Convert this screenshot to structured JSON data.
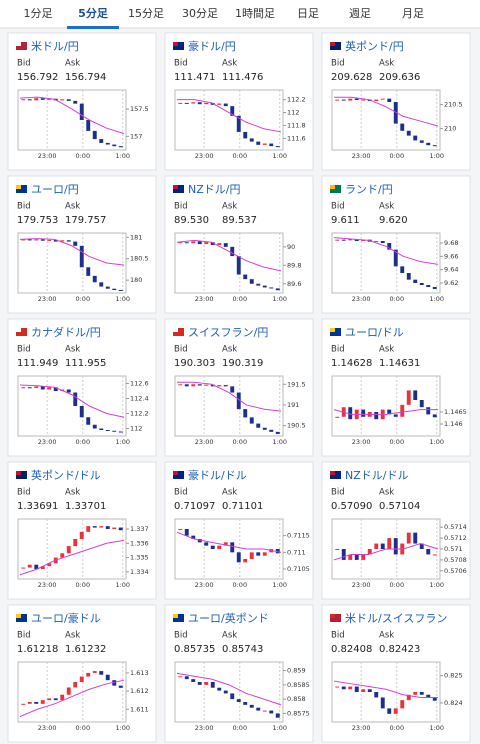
{
  "tabs": [
    "1分足",
    "5分足",
    "15分足",
    "30分足",
    "1時間足",
    "日足",
    "週足",
    "月足"
  ],
  "bid_label": "Bid",
  "ask_label": "Ask",
  "xticks": [
    "23:00",
    "0:00",
    "1:00"
  ],
  "cards": [
    {
      "pair": "米ドル/円",
      "bid": "156.792",
      "ask": "156.794",
      "ylim": [
        156.75,
        157.85
      ],
      "yticks": [
        157.5,
        157
      ],
      "closes": [
        157.68,
        157.66,
        157.7,
        157.67,
        157.69,
        157.66,
        157.68,
        157.65,
        157.6,
        157.3,
        157.1,
        156.95,
        156.88,
        156.85,
        156.82,
        156.8
      ],
      "ma": [
        157.7,
        157.72,
        157.68,
        157.5,
        157.3,
        157.15,
        157.05
      ]
    },
    {
      "pair": "豪ドル/円",
      "bid": "111.471",
      "ask": "111.476",
      "ylim": [
        111.42,
        112.35
      ],
      "yticks": [
        112.2,
        112,
        111.8,
        111.6
      ],
      "closes": [
        112.15,
        112.14,
        112.16,
        112.13,
        112.15,
        112.12,
        112.14,
        112.1,
        111.95,
        111.7,
        111.6,
        111.55,
        111.5,
        111.52,
        111.48,
        111.47
      ],
      "ma": [
        112.2,
        112.2,
        112.15,
        112.0,
        111.85,
        111.75,
        111.7
      ]
    },
    {
      "pair": "英ポンド/円",
      "bid": "209.628",
      "ask": "209.636",
      "ylim": [
        209.55,
        210.8
      ],
      "yticks": [
        210.5,
        210
      ],
      "closes": [
        210.6,
        210.58,
        210.62,
        210.59,
        210.6,
        210.57,
        210.6,
        210.62,
        210.55,
        210.1,
        209.95,
        209.85,
        209.75,
        209.7,
        209.65,
        209.63
      ],
      "ma": [
        210.65,
        210.65,
        210.6,
        210.45,
        210.25,
        210.15,
        210.05
      ]
    },
    {
      "pair": "ユーロ/円",
      "bid": "179.753",
      "ask": "179.757",
      "ylim": [
        179.7,
        181.1
      ],
      "yticks": [
        181,
        180.5,
        180
      ],
      "closes": [
        180.95,
        180.93,
        180.95,
        180.92,
        180.94,
        180.9,
        180.93,
        180.9,
        180.8,
        180.3,
        180.1,
        179.95,
        179.85,
        179.8,
        179.77,
        179.75
      ],
      "ma": [
        180.95,
        180.97,
        180.95,
        180.8,
        180.55,
        180.4,
        180.35
      ]
    },
    {
      "pair": "NZドル/円",
      "bid": "89.530",
      "ask": "89.537",
      "ylim": [
        89.5,
        90.15
      ],
      "yticks": [
        90,
        89.8,
        89.6
      ],
      "closes": [
        90.05,
        90.04,
        90.06,
        90.03,
        90.05,
        90.02,
        90.04,
        90.0,
        89.9,
        89.7,
        89.65,
        89.6,
        89.58,
        89.56,
        89.55,
        89.53
      ],
      "ma": [
        90.05,
        90.07,
        90.05,
        89.95,
        89.85,
        89.78,
        89.74
      ]
    },
    {
      "pair": "ランド/円",
      "bid": "9.611",
      "ask": "9.620",
      "ylim": [
        9.605,
        9.695
      ],
      "yticks": [
        9.68,
        9.66,
        9.64,
        9.62
      ],
      "closes": [
        9.685,
        9.684,
        9.686,
        9.683,
        9.685,
        9.682,
        9.683,
        9.68,
        9.67,
        9.645,
        9.635,
        9.625,
        9.62,
        9.617,
        9.614,
        9.611
      ],
      "ma": [
        9.688,
        9.686,
        9.684,
        9.675,
        9.66,
        9.652,
        9.648
      ]
    },
    {
      "pair": "カナダドル/円",
      "bid": "111.949",
      "ask": "111.955",
      "ylim": [
        111.9,
        112.7
      ],
      "yticks": [
        112.6,
        112.4,
        112.2,
        112
      ],
      "closes": [
        112.55,
        112.54,
        112.56,
        112.52,
        112.55,
        112.5,
        112.52,
        112.48,
        112.3,
        112.15,
        112.05,
        112.0,
        111.98,
        111.97,
        111.96,
        111.95
      ],
      "ma": [
        112.58,
        112.57,
        112.55,
        112.45,
        112.3,
        112.2,
        112.15
      ]
    },
    {
      "pair": "スイスフラン/円",
      "bid": "190.303",
      "ask": "190.319",
      "ylim": [
        190.25,
        191.7
      ],
      "yticks": [
        191.5,
        191,
        190.5
      ],
      "closes": [
        191.5,
        191.45,
        191.5,
        191.47,
        191.49,
        191.45,
        191.48,
        191.45,
        191.3,
        190.9,
        190.7,
        190.55,
        190.45,
        190.4,
        190.35,
        190.3
      ],
      "ma": [
        191.55,
        191.55,
        191.5,
        191.3,
        191.0,
        190.9,
        190.85
      ]
    },
    {
      "pair": "ユーロ/ドル",
      "bid": "1.14628",
      "ask": "1.14631",
      "ylim": [
        1.1455,
        1.148
      ],
      "yticks": [
        1.1465,
        1.146
      ],
      "closes": [
        1.1463,
        1.1467,
        1.1462,
        1.1466,
        1.1463,
        1.1465,
        1.1462,
        1.1466,
        1.1464,
        1.1463,
        1.1468,
        1.1474,
        1.147,
        1.1467,
        1.1464,
        1.14628
      ],
      "ma": [
        1.1466,
        1.1464,
        1.1464,
        1.1464,
        1.1465,
        1.1466,
        1.1466
      ]
    },
    {
      "pair": "英ポンド/ドル",
      "bid": "1.33691",
      "ask": "1.33701",
      "ylim": [
        1.3335,
        1.3377
      ],
      "yticks": [
        1.337,
        1.336,
        1.335,
        1.334
      ],
      "closes": [
        1.3343,
        1.3345,
        1.3342,
        1.3344,
        1.3346,
        1.335,
        1.3353,
        1.3358,
        1.3363,
        1.3368,
        1.3372,
        1.3371,
        1.3372,
        1.337,
        1.3371,
        1.33691
      ],
      "ma": [
        1.3338,
        1.3342,
        1.3348,
        1.3352,
        1.3356,
        1.336,
        1.3362
      ]
    },
    {
      "pair": "豪ドル/ドル",
      "bid": "0.71097",
      "ask": "0.71101",
      "ylim": [
        0.7102,
        0.712
      ],
      "yticks": [
        0.7115,
        0.711,
        0.7105
      ],
      "closes": [
        0.7117,
        0.7115,
        0.7114,
        0.7113,
        0.7112,
        0.7111,
        0.7112,
        0.7113,
        0.711,
        0.7107,
        0.7108,
        0.711,
        0.7109,
        0.711,
        0.7111,
        0.71097
      ],
      "ma": [
        0.7116,
        0.7114,
        0.7113,
        0.7112,
        0.7111,
        0.7111,
        0.711
      ]
    },
    {
      "pair": "NZドル/ドル",
      "bid": "0.57090",
      "ask": "0.57104",
      "ylim": [
        0.57045,
        0.57155
      ],
      "yticks": [
        0.5714,
        0.5712,
        0.571,
        0.5708,
        0.5706
      ],
      "closes": [
        0.571,
        0.5708,
        0.5709,
        0.5708,
        0.5709,
        0.571,
        0.5711,
        0.571,
        0.5712,
        0.5709,
        0.5711,
        0.5713,
        0.5711,
        0.571,
        0.5709,
        0.5709
      ],
      "ma": [
        0.5708,
        0.5709,
        0.5709,
        0.571,
        0.571,
        0.5711,
        0.571
      ]
    },
    {
      "pair": "ユーロ/豪ドル",
      "bid": "1.61218",
      "ask": "1.61232",
      "ylim": [
        1.6103,
        1.6136
      ],
      "yticks": [
        1.613,
        1.612,
        1.611
      ],
      "closes": [
        1.6113,
        1.6114,
        1.6113,
        1.6115,
        1.6116,
        1.6115,
        1.6118,
        1.6122,
        1.6125,
        1.6128,
        1.613,
        1.6131,
        1.6129,
        1.6126,
        1.6123,
        1.61218
      ],
      "ma": [
        1.6106,
        1.611,
        1.6113,
        1.6117,
        1.6121,
        1.6124,
        1.6126
      ]
    },
    {
      "pair": "ユーロ/英ポンド",
      "bid": "0.85735",
      "ask": "0.85743",
      "ylim": [
        0.8572,
        0.8593
      ],
      "yticks": [
        0.859,
        0.8585,
        0.858,
        0.8575
      ],
      "closes": [
        0.8588,
        0.8587,
        0.8586,
        0.8585,
        0.8586,
        0.8584,
        0.8583,
        0.8582,
        0.858,
        0.8579,
        0.8578,
        0.8577,
        0.8576,
        0.8576,
        0.8575,
        0.85735
      ],
      "ma": [
        0.8589,
        0.8588,
        0.8587,
        0.8585,
        0.8582,
        0.858,
        0.8578
      ]
    },
    {
      "pair": "米ドル/スイスフラン",
      "bid": "0.82408",
      "ask": "0.82423",
      "ylim": [
        0.8233,
        0.8255
      ],
      "yticks": [
        0.825,
        0.824
      ],
      "closes": [
        0.8246,
        0.8245,
        0.8246,
        0.8244,
        0.8245,
        0.8244,
        0.8242,
        0.8238,
        0.8236,
        0.8238,
        0.8241,
        0.8243,
        0.8244,
        0.8243,
        0.8242,
        0.82408
      ],
      "ma": [
        0.8248,
        0.8247,
        0.8246,
        0.8245,
        0.8243,
        0.8242,
        0.8242
      ]
    }
  ]
}
